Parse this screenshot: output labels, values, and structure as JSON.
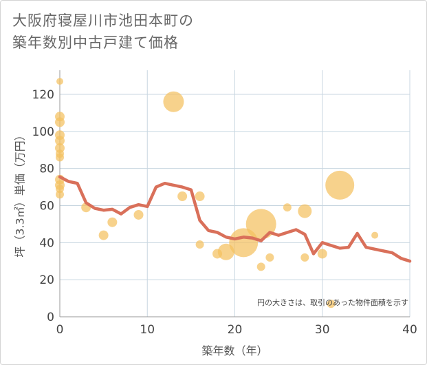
{
  "title_lines": [
    "大阪府寝屋川市池田本町の",
    "築年数別中古戸建て価格"
  ],
  "chart_data": {
    "type": "scatter+line",
    "title": "大阪府寝屋川市池田本町の築年数別中古戸建て価格",
    "xlabel": "築年数（年）",
    "ylabel": "坪（3.3㎡）単価（万円）",
    "xlim": [
      0,
      40
    ],
    "ylim": [
      0,
      133
    ],
    "xticks": [
      0,
      10,
      20,
      30,
      40
    ],
    "yticks": [
      0,
      20,
      40,
      60,
      80,
      100,
      120
    ],
    "grid": true,
    "note": "円の大きさは、取引のあった物件面積を示す",
    "colors": {
      "bubble": "#f4c060",
      "line": "#d9705a",
      "grid": "#c8d6e0",
      "plot_bg": "#ffffff"
    },
    "scatter": [
      {
        "x": 0,
        "y": 127,
        "r": 5
      },
      {
        "x": 0,
        "y": 108,
        "r": 7
      },
      {
        "x": 0,
        "y": 105,
        "r": 7
      },
      {
        "x": 0,
        "y": 98,
        "r": 7
      },
      {
        "x": 0,
        "y": 95,
        "r": 7
      },
      {
        "x": 0,
        "y": 91,
        "r": 7
      },
      {
        "x": 0,
        "y": 88,
        "r": 6
      },
      {
        "x": 0,
        "y": 86,
        "r": 6
      },
      {
        "x": 0,
        "y": 74,
        "r": 7
      },
      {
        "x": 0,
        "y": 71,
        "r": 7
      },
      {
        "x": 0,
        "y": 69,
        "r": 6
      },
      {
        "x": 0,
        "y": 66,
        "r": 6
      },
      {
        "x": 3,
        "y": 59,
        "r": 7
      },
      {
        "x": 5,
        "y": 44,
        "r": 7
      },
      {
        "x": 6,
        "y": 51,
        "r": 7
      },
      {
        "x": 9,
        "y": 55,
        "r": 7
      },
      {
        "x": 13,
        "y": 116,
        "r": 15
      },
      {
        "x": 14,
        "y": 65,
        "r": 7
      },
      {
        "x": 16,
        "y": 65,
        "r": 7
      },
      {
        "x": 16,
        "y": 39,
        "r": 6
      },
      {
        "x": 18,
        "y": 34,
        "r": 7
      },
      {
        "x": 19,
        "y": 35,
        "r": 12
      },
      {
        "x": 21,
        "y": 40,
        "r": 21
      },
      {
        "x": 23,
        "y": 50,
        "r": 22
      },
      {
        "x": 23,
        "y": 27,
        "r": 6
      },
      {
        "x": 24,
        "y": 32,
        "r": 6
      },
      {
        "x": 26,
        "y": 59,
        "r": 6
      },
      {
        "x": 28,
        "y": 57,
        "r": 10
      },
      {
        "x": 28,
        "y": 32,
        "r": 6
      },
      {
        "x": 30,
        "y": 34,
        "r": 7
      },
      {
        "x": 31,
        "y": 7,
        "r": 6
      },
      {
        "x": 32,
        "y": 71,
        "r": 21
      },
      {
        "x": 36,
        "y": 44,
        "r": 5
      }
    ],
    "line": [
      {
        "x": 0,
        "y": 75.5
      },
      {
        "x": 1,
        "y": 73
      },
      {
        "x": 2,
        "y": 72
      },
      {
        "x": 3,
        "y": 61.5
      },
      {
        "x": 4,
        "y": 58.5
      },
      {
        "x": 5,
        "y": 57.5
      },
      {
        "x": 6,
        "y": 58
      },
      {
        "x": 7,
        "y": 55.5
      },
      {
        "x": 8,
        "y": 59
      },
      {
        "x": 9,
        "y": 60.5
      },
      {
        "x": 10,
        "y": 59.5
      },
      {
        "x": 11,
        "y": 70
      },
      {
        "x": 12,
        "y": 72
      },
      {
        "x": 13,
        "y": 71
      },
      {
        "x": 14,
        "y": 70
      },
      {
        "x": 15,
        "y": 68.5
      },
      {
        "x": 16,
        "y": 52
      },
      {
        "x": 17,
        "y": 46.5
      },
      {
        "x": 18,
        "y": 45.5
      },
      {
        "x": 19,
        "y": 43
      },
      {
        "x": 20,
        "y": 42
      },
      {
        "x": 21,
        "y": 43
      },
      {
        "x": 22,
        "y": 42.5
      },
      {
        "x": 23,
        "y": 41
      },
      {
        "x": 24,
        "y": 45.5
      },
      {
        "x": 25,
        "y": 44
      },
      {
        "x": 26,
        "y": 45.5
      },
      {
        "x": 27,
        "y": 47
      },
      {
        "x": 28,
        "y": 44.5
      },
      {
        "x": 29,
        "y": 34
      },
      {
        "x": 30,
        "y": 40
      },
      {
        "x": 31,
        "y": 38.5
      },
      {
        "x": 32,
        "y": 37
      },
      {
        "x": 33,
        "y": 37.5
      },
      {
        "x": 34,
        "y": 45
      },
      {
        "x": 35,
        "y": 37.5
      },
      {
        "x": 36,
        "y": 36.5
      },
      {
        "x": 37,
        "y": 35.5
      },
      {
        "x": 38,
        "y": 34.5
      },
      {
        "x": 39,
        "y": 31.5
      },
      {
        "x": 40,
        "y": 30
      }
    ]
  }
}
